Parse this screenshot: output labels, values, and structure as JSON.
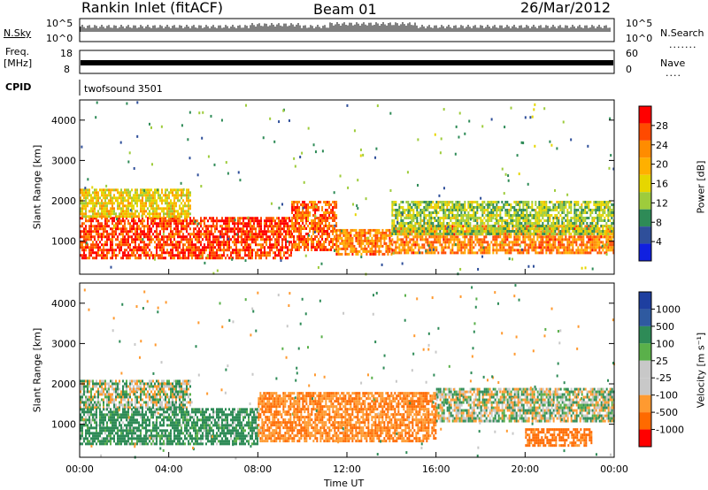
{
  "header": {
    "site": "Rankin Inlet (fitACF)",
    "beam": "Beam 01",
    "date": "26/Mar/2012"
  },
  "panels": {
    "nsky_label": "N.Sky",
    "nsearch_label": "N.Search",
    "freq_label_1": "Freq.",
    "freq_label_2": "[MHz]",
    "nave_label": "Nave",
    "cpid_label": "CPID",
    "cpid_value": "twofsound 3501",
    "nsky_ticks": [
      "10^5",
      "10^0"
    ],
    "nsearch_ticks": [
      "10^5",
      "10^0"
    ],
    "freq_ticks": [
      "18",
      "8"
    ],
    "nave_ticks": [
      "60",
      "0"
    ]
  },
  "colorbars": {
    "power": {
      "label": "Power [dB]",
      "ticks": [
        "28",
        "24",
        "20",
        "16",
        "12",
        "8",
        "4"
      ],
      "colors": [
        "#ff0000",
        "#ff4a00",
        "#ff8c00",
        "#ffb000",
        "#e6d600",
        "#9ecc3c",
        "#2e8b57",
        "#2f4f9a",
        "#1020e0"
      ]
    },
    "velocity": {
      "label": "Velocity [m s⁻¹]",
      "ticks": [
        "1000",
        "500",
        "100",
        "25",
        "-25",
        "-100",
        "-500",
        "-1000"
      ],
      "colors": [
        "#1e3fa0",
        "#2f5aa0",
        "#2e8b57",
        "#5ab04a",
        "#c8c8c8",
        "#c8c8c8",
        "#ff9a30",
        "#ff6a00",
        "#ff0000"
      ]
    }
  },
  "chart_data": [
    {
      "type": "heatmap",
      "title": "Power",
      "xlabel": "Time UT",
      "ylabel": "Slant Range [km]",
      "x_ticks": [
        "00:00",
        "04:00",
        "08:00",
        "12:00",
        "16:00",
        "20:00",
        "00:00"
      ],
      "y_ticks": [
        1000,
        2000,
        3000,
        4000
      ],
      "xlim": [
        0,
        24
      ],
      "ylim": [
        180,
        4500
      ],
      "bands": [
        {
          "x": [
            0,
            9.5
          ],
          "y": [
            600,
            1600
          ],
          "value": 26
        },
        {
          "x": [
            9.5,
            11.5
          ],
          "y": [
            800,
            2000
          ],
          "value": 24
        },
        {
          "x": [
            11.5,
            14
          ],
          "y": [
            700,
            1300
          ],
          "value": 22
        },
        {
          "x": [
            14,
            24
          ],
          "y": [
            700,
            1400
          ],
          "value": 22
        },
        {
          "x": [
            14,
            24
          ],
          "y": [
            1200,
            2000
          ],
          "value": 12
        },
        {
          "x": [
            0,
            5
          ],
          "y": [
            1600,
            2300
          ],
          "value": 16
        }
      ]
    },
    {
      "type": "heatmap",
      "title": "Velocity",
      "xlabel": "Time UT",
      "ylabel": "Slant Range [km]",
      "x_ticks": [
        "00:00",
        "04:00",
        "08:00",
        "12:00",
        "16:00",
        "20:00",
        "00:00"
      ],
      "y_ticks": [
        1000,
        2000,
        3000,
        4000
      ],
      "xlim": [
        0,
        24
      ],
      "ylim": [
        180,
        4500
      ],
      "bands": [
        {
          "x": [
            0,
            5
          ],
          "y": [
            1400,
            2100
          ],
          "value": 0
        },
        {
          "x": [
            0,
            8
          ],
          "y": [
            500,
            1400
          ],
          "value": 150
        },
        {
          "x": [
            8,
            16
          ],
          "y": [
            600,
            1800
          ],
          "value": -300
        },
        {
          "x": [
            16,
            24
          ],
          "y": [
            1100,
            1900
          ],
          "value": 0
        },
        {
          "x": [
            20,
            23
          ],
          "y": [
            500,
            900
          ],
          "value": -400
        }
      ]
    }
  ],
  "axis": {
    "x_label": "Time UT"
  }
}
